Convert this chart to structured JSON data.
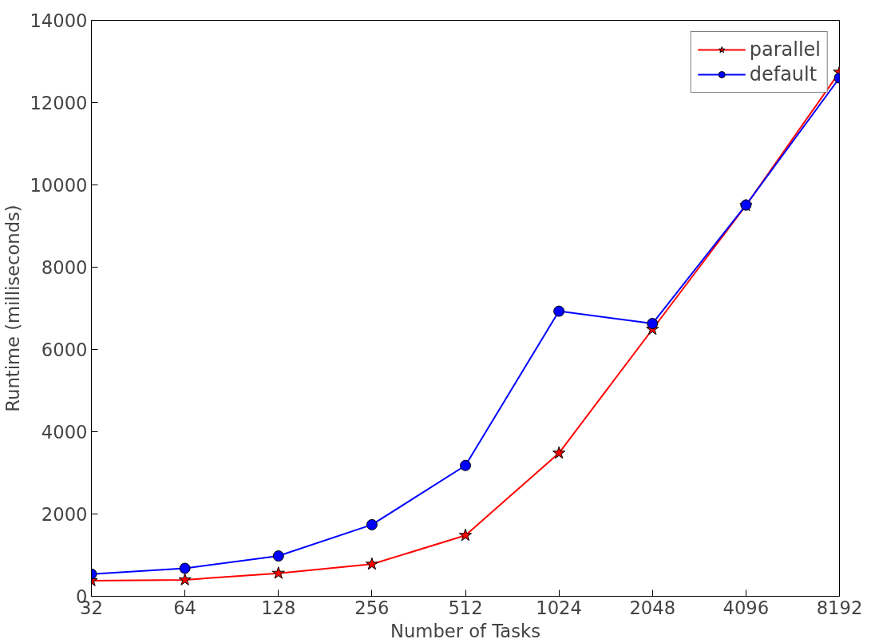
{
  "chart_data": {
    "type": "line",
    "xlabel": "Number of Tasks",
    "ylabel": "Runtime (milliseconds)",
    "categories": [
      "32",
      "64",
      "128",
      "256",
      "512",
      "1024",
      "2048",
      "4096",
      "8192"
    ],
    "ylim": [
      0,
      14000
    ],
    "yticks": [
      0,
      2000,
      4000,
      6000,
      8000,
      10000,
      12000,
      14000
    ],
    "grid": false,
    "legend": "top right",
    "line_style": "solid",
    "series": [
      {
        "name": "parallel",
        "color": "#ff0000",
        "marker": "star",
        "values": [
          380,
          400,
          560,
          780,
          1480,
          3480,
          6490,
          9500,
          12740
        ]
      },
      {
        "name": "default",
        "color": "#0000ff",
        "marker": "circle",
        "values": [
          540,
          680,
          980,
          1740,
          3180,
          6930,
          6630,
          9510,
          12600
        ]
      }
    ]
  }
}
